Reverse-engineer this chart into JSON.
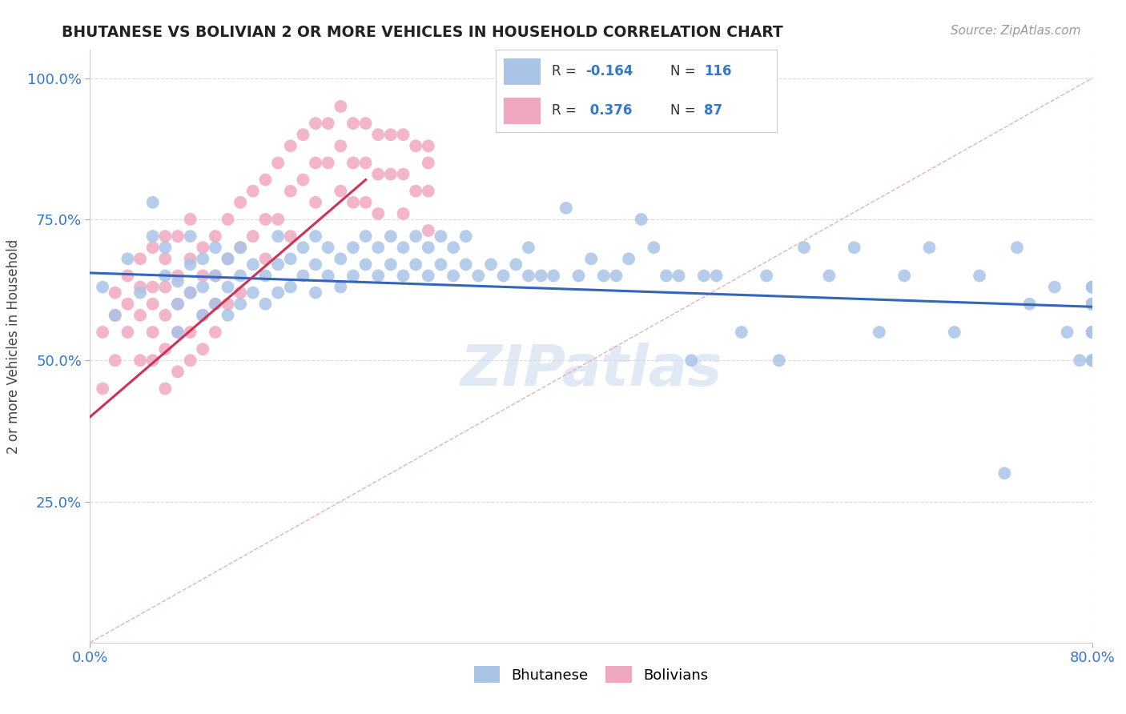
{
  "title": "BHUTANESE VS BOLIVIAN 2 OR MORE VEHICLES IN HOUSEHOLD CORRELATION CHART",
  "source": "Source: ZipAtlas.com",
  "xmin": 0.0,
  "xmax": 0.8,
  "ymin": 0.0,
  "ymax": 1.05,
  "bhutanese_color": "#aac4e8",
  "bolivian_color": "#f0a8c0",
  "bhutanese_line_color": "#3366bb",
  "bolivian_line_color": "#cc3355",
  "diagonal_color": "#d0d0d0",
  "R_bhutanese": -0.164,
  "N_bhutanese": 116,
  "R_bolivian": 0.376,
  "N_bolivian": 87,
  "ylabel": "2 or more Vehicles in Household",
  "legend_bhutanese": "Bhutanese",
  "legend_bolivian": "Bolivians",
  "watermark": "ZIPatlas",
  "bhu_line_x0": 0.0,
  "bhu_line_y0": 0.655,
  "bhu_line_x1": 0.8,
  "bhu_line_y1": 0.595,
  "bol_line_x0": 0.0,
  "bol_line_y0": 0.4,
  "bol_line_x1": 0.22,
  "bol_line_y1": 0.82,
  "bhutanese_x": [
    0.01,
    0.02,
    0.03,
    0.04,
    0.05,
    0.05,
    0.06,
    0.06,
    0.07,
    0.07,
    0.07,
    0.08,
    0.08,
    0.08,
    0.09,
    0.09,
    0.09,
    0.1,
    0.1,
    0.1,
    0.11,
    0.11,
    0.11,
    0.12,
    0.12,
    0.12,
    0.13,
    0.13,
    0.14,
    0.14,
    0.15,
    0.15,
    0.15,
    0.16,
    0.16,
    0.17,
    0.17,
    0.18,
    0.18,
    0.18,
    0.19,
    0.19,
    0.2,
    0.2,
    0.21,
    0.21,
    0.22,
    0.22,
    0.23,
    0.23,
    0.24,
    0.24,
    0.25,
    0.25,
    0.26,
    0.26,
    0.27,
    0.27,
    0.28,
    0.28,
    0.29,
    0.29,
    0.3,
    0.3,
    0.31,
    0.32,
    0.33,
    0.34,
    0.35,
    0.35,
    0.36,
    0.37,
    0.38,
    0.39,
    0.4,
    0.41,
    0.42,
    0.43,
    0.44,
    0.45,
    0.46,
    0.47,
    0.48,
    0.49,
    0.5,
    0.52,
    0.54,
    0.55,
    0.57,
    0.59,
    0.61,
    0.63,
    0.65,
    0.67,
    0.69,
    0.71,
    0.73,
    0.74,
    0.75,
    0.77,
    0.78,
    0.79,
    0.8,
    0.8,
    0.8,
    0.8,
    0.8,
    0.8,
    0.8,
    0.8,
    0.8,
    0.8,
    0.8,
    0.8,
    0.8,
    0.8
  ],
  "bhutanese_y": [
    0.63,
    0.58,
    0.68,
    0.62,
    0.72,
    0.78,
    0.65,
    0.7,
    0.6,
    0.64,
    0.55,
    0.62,
    0.67,
    0.72,
    0.58,
    0.63,
    0.68,
    0.6,
    0.65,
    0.7,
    0.58,
    0.63,
    0.68,
    0.6,
    0.65,
    0.7,
    0.62,
    0.67,
    0.6,
    0.65,
    0.62,
    0.67,
    0.72,
    0.63,
    0.68,
    0.65,
    0.7,
    0.62,
    0.67,
    0.72,
    0.65,
    0.7,
    0.63,
    0.68,
    0.65,
    0.7,
    0.67,
    0.72,
    0.65,
    0.7,
    0.67,
    0.72,
    0.65,
    0.7,
    0.67,
    0.72,
    0.65,
    0.7,
    0.67,
    0.72,
    0.65,
    0.7,
    0.67,
    0.72,
    0.65,
    0.67,
    0.65,
    0.67,
    0.65,
    0.7,
    0.65,
    0.65,
    0.77,
    0.65,
    0.68,
    0.65,
    0.65,
    0.68,
    0.75,
    0.7,
    0.65,
    0.65,
    0.5,
    0.65,
    0.65,
    0.55,
    0.65,
    0.5,
    0.7,
    0.65,
    0.7,
    0.55,
    0.65,
    0.7,
    0.55,
    0.65,
    0.3,
    0.7,
    0.6,
    0.63,
    0.55,
    0.5,
    0.6,
    0.63,
    0.55,
    0.5,
    0.63,
    0.55,
    0.6,
    0.5,
    0.63,
    0.55,
    0.6,
    0.5,
    0.6,
    0.55
  ],
  "bolivian_x": [
    0.01,
    0.01,
    0.02,
    0.02,
    0.02,
    0.03,
    0.03,
    0.03,
    0.04,
    0.04,
    0.04,
    0.04,
    0.05,
    0.05,
    0.05,
    0.05,
    0.05,
    0.06,
    0.06,
    0.06,
    0.06,
    0.06,
    0.06,
    0.07,
    0.07,
    0.07,
    0.07,
    0.07,
    0.08,
    0.08,
    0.08,
    0.08,
    0.08,
    0.09,
    0.09,
    0.09,
    0.09,
    0.1,
    0.1,
    0.1,
    0.1,
    0.11,
    0.11,
    0.11,
    0.12,
    0.12,
    0.12,
    0.13,
    0.13,
    0.14,
    0.14,
    0.14,
    0.15,
    0.15,
    0.16,
    0.16,
    0.16,
    0.17,
    0.17,
    0.18,
    0.18,
    0.18,
    0.19,
    0.19,
    0.2,
    0.2,
    0.2,
    0.21,
    0.21,
    0.21,
    0.22,
    0.22,
    0.22,
    0.23,
    0.23,
    0.23,
    0.24,
    0.24,
    0.25,
    0.25,
    0.25,
    0.26,
    0.26,
    0.27,
    0.27,
    0.27,
    0.27
  ],
  "bolivian_y": [
    0.55,
    0.45,
    0.62,
    0.5,
    0.58,
    0.6,
    0.55,
    0.65,
    0.63,
    0.58,
    0.68,
    0.5,
    0.63,
    0.55,
    0.6,
    0.7,
    0.5,
    0.63,
    0.68,
    0.58,
    0.72,
    0.52,
    0.45,
    0.65,
    0.72,
    0.6,
    0.55,
    0.48,
    0.68,
    0.75,
    0.62,
    0.55,
    0.5,
    0.7,
    0.65,
    0.58,
    0.52,
    0.72,
    0.65,
    0.6,
    0.55,
    0.75,
    0.68,
    0.6,
    0.78,
    0.7,
    0.62,
    0.8,
    0.72,
    0.82,
    0.75,
    0.68,
    0.85,
    0.75,
    0.88,
    0.8,
    0.72,
    0.9,
    0.82,
    0.92,
    0.85,
    0.78,
    0.92,
    0.85,
    0.95,
    0.88,
    0.8,
    0.92,
    0.85,
    0.78,
    0.92,
    0.85,
    0.78,
    0.9,
    0.83,
    0.76,
    0.9,
    0.83,
    0.9,
    0.83,
    0.76,
    0.88,
    0.8,
    0.85,
    0.8,
    0.73,
    0.88
  ]
}
